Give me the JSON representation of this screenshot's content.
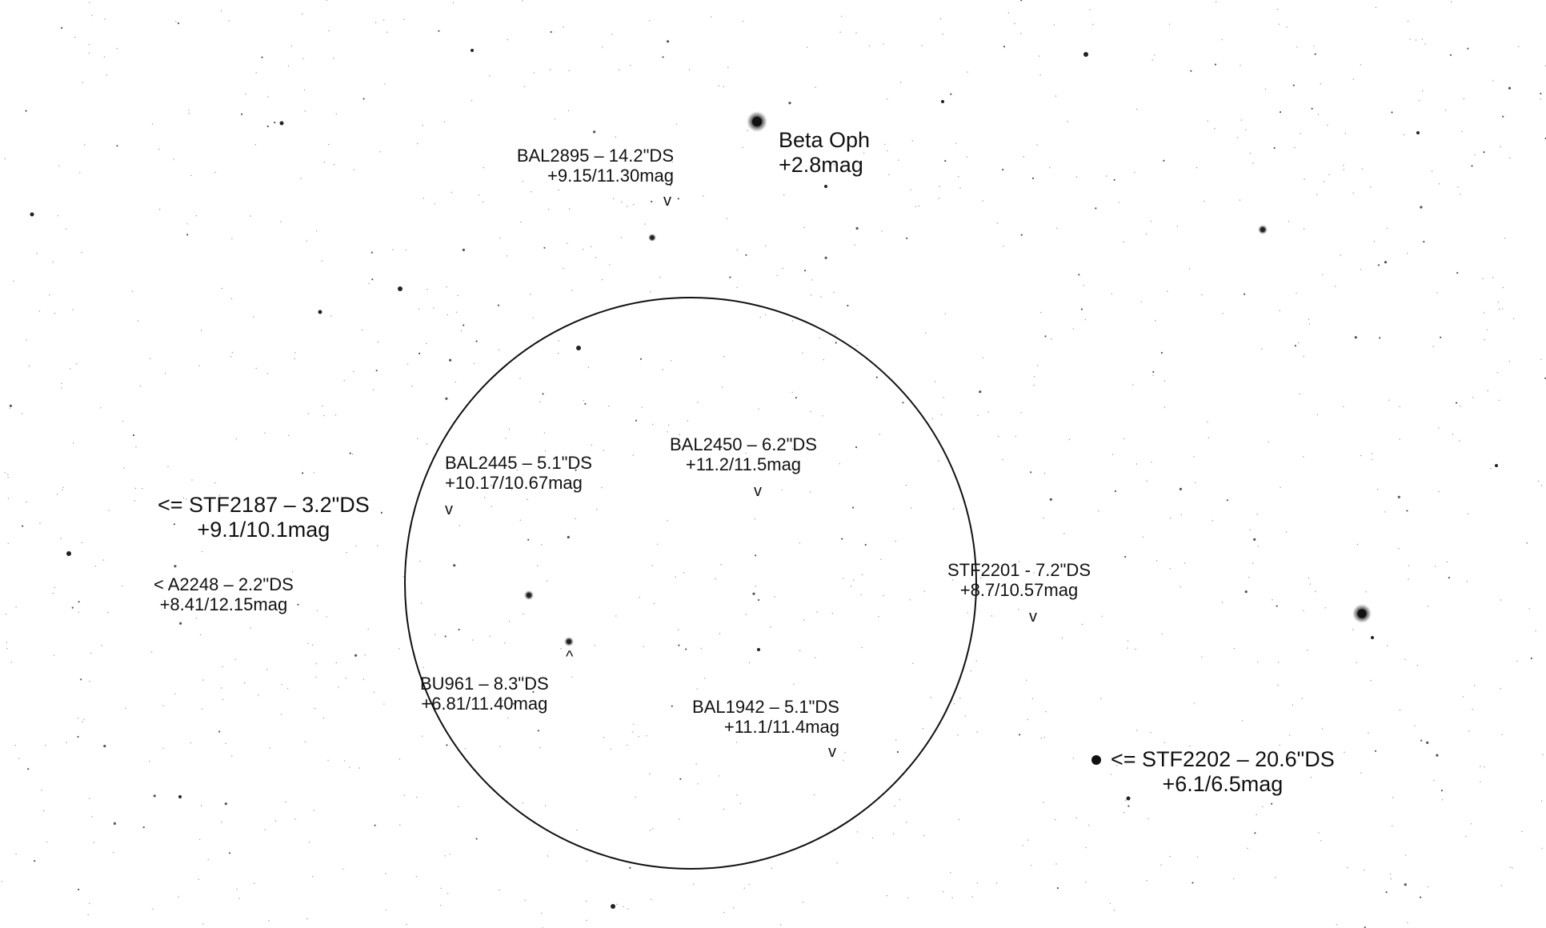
{
  "colors": {
    "background": "#ffffff",
    "ink": "#111111",
    "star": "#1a1a1a"
  },
  "field_of_view": {
    "shape": "circle"
  },
  "labels": {
    "beta_oph": {
      "name": "Beta Oph",
      "mag": "+2.8mag"
    },
    "bal2895": {
      "name": "BAL2895 – 14.2\"DS",
      "mag": "+9.15/11.30mag",
      "marker": "v"
    },
    "bal2445": {
      "name": "BAL2445 – 5.1\"DS",
      "mag": "+10.17/10.67mag",
      "marker": "v"
    },
    "bal2450": {
      "name": "BAL2450 – 6.2\"DS",
      "mag": "+11.2/11.5mag",
      "marker": "v"
    },
    "stf2187": {
      "name": "<= STF2187 – 3.2\"DS",
      "mag": "+9.1/10.1mag"
    },
    "a2248": {
      "name": "< A2248 – 2.2\"DS",
      "mag": "+8.41/12.15mag"
    },
    "stf2201": {
      "name": "STF2201 - 7.2\"DS",
      "mag": "+8.7/10.57mag",
      "marker": "v"
    },
    "bu961": {
      "name": "BU961 – 8.3\"DS",
      "mag": "+6.81/11.40mag",
      "marker": "^"
    },
    "bal1942": {
      "name": "BAL1942 – 5.1\"DS",
      "mag": "+11.1/11.4mag",
      "marker": "v"
    },
    "stf2202": {
      "name": "<= STF2202 – 20.6\"DS",
      "mag": "+6.1/6.5mag"
    }
  }
}
